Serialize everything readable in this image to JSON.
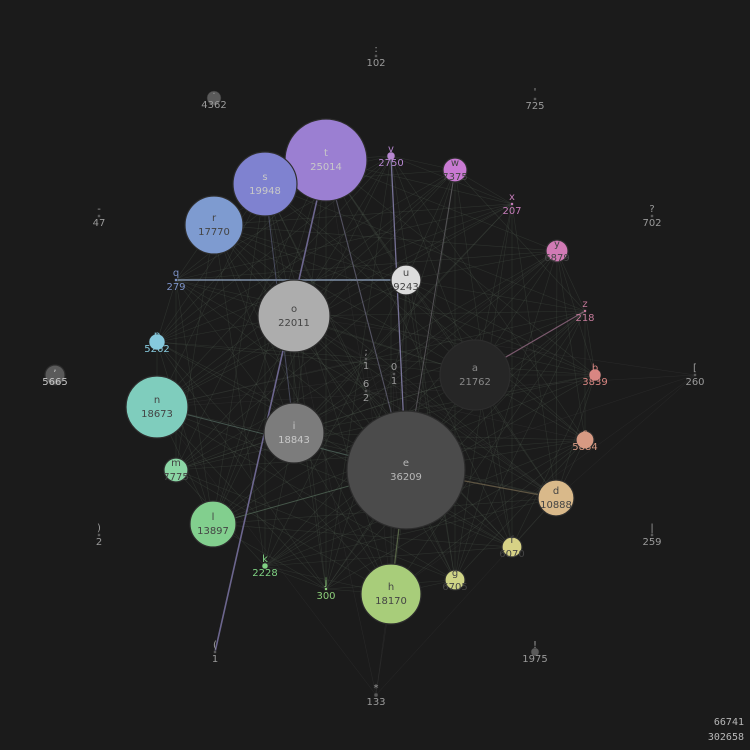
{
  "stats": {
    "top": "66741",
    "bottom": "302658"
  },
  "nodes": [
    {
      "id": "t",
      "label": "t",
      "count": "25014",
      "color": "#9b7fd2"
    },
    {
      "id": "s",
      "label": "s",
      "count": "19948",
      "color": "#7f82d0"
    },
    {
      "id": "r",
      "label": "r",
      "count": "17770",
      "color": "#7e9bd0"
    },
    {
      "id": "o",
      "label": "o",
      "count": "22011",
      "color": "#adadad"
    },
    {
      "id": "u",
      "label": "u",
      "count": "9243",
      "color": "#dcdcdc"
    },
    {
      "id": "a",
      "label": "a",
      "count": "21762",
      "color": "#262626"
    },
    {
      "id": "e",
      "label": "e",
      "count": "36209",
      "color": "#4b4b4b"
    },
    {
      "id": "i",
      "label": "i",
      "count": "18843",
      "color": "#7c7c7c"
    },
    {
      "id": "n",
      "label": "n",
      "count": "18673",
      "color": "#7fcdbd"
    },
    {
      "id": "m",
      "label": "m",
      "count": "7775",
      "color": "#8bd6a5"
    },
    {
      "id": "l",
      "label": "l",
      "count": "13897",
      "color": "#82cf8e"
    },
    {
      "id": "h",
      "label": "h",
      "count": "18170",
      "color": "#a8cd7a"
    },
    {
      "id": "d",
      "label": "d",
      "count": "10888",
      "color": "#d9b98a"
    },
    {
      "id": "w",
      "label": "w",
      "count": "7375",
      "color": "#c97ad3"
    },
    {
      "id": "y",
      "label": "y",
      "count": "6879",
      "color": "#d17ab4"
    },
    {
      "id": "p",
      "label": "p",
      "count": "5262",
      "color": "#86c9dd"
    },
    {
      "id": "c",
      "label": "c",
      "count": "5884",
      "color": "#d79a83"
    },
    {
      "id": "f",
      "label": "f",
      "count": "6070",
      "color": "#d7d286"
    },
    {
      "id": "g",
      "label": "g",
      "count": "6705",
      "color": "#cfd486"
    },
    {
      "id": "b",
      "label": "b",
      "count": "3839",
      "color": "#d98682"
    },
    {
      "id": "v",
      "label": "v",
      "count": "2750",
      "color": "#b787d1"
    },
    {
      "id": "k",
      "label": "k",
      "count": "2228",
      "color": "#7fd283"
    },
    {
      "id": "x",
      "label": "x",
      "count": "207",
      "color": "#c47ab8"
    },
    {
      "id": "z",
      "label": "z",
      "count": "218",
      "color": "#c47a9a"
    },
    {
      "id": "q",
      "label": "q",
      "count": "279",
      "color": "#7d93c8"
    },
    {
      "id": "j",
      "label": "j",
      "count": "300",
      "color": "#8ccf7a"
    },
    {
      "id": "dot",
      "label": ".",
      "count": "4362",
      "color": "#5a5a5a"
    },
    {
      "id": "comma",
      "label": ",",
      "count": "5665",
      "color": "#5a5a5a"
    },
    {
      "id": "colon",
      "label": ":",
      "count": "102",
      "color": "#5a5a5a"
    },
    {
      "id": "quote",
      "label": "'",
      "count": "725",
      "color": "#5a5a5a"
    },
    {
      "id": "dash",
      "label": "-",
      "count": "47",
      "color": "#5a5a5a"
    },
    {
      "id": "qmark",
      "label": "?",
      "count": "702",
      "color": "#5a5a5a"
    },
    {
      "id": "semi",
      "label": ";",
      "count": "1",
      "color": "#5a5a5a"
    },
    {
      "id": "zero",
      "label": "0",
      "count": "1",
      "color": "#5a5a5a"
    },
    {
      "id": "six",
      "label": "6",
      "count": "2",
      "color": "#5a5a5a"
    },
    {
      "id": "lbracket",
      "label": "[",
      "count": "260",
      "color": "#5a5a5a"
    },
    {
      "id": "rparen",
      "label": ")",
      "count": "2",
      "color": "#5a5a5a"
    },
    {
      "id": "pipe",
      "label": "|",
      "count": "259",
      "color": "#5a5a5a"
    },
    {
      "id": "lparen",
      "label": "(",
      "count": "1",
      "color": "#5a5a5a"
    },
    {
      "id": "bang",
      "label": "!",
      "count": "1975",
      "color": "#5a5a5a"
    },
    {
      "id": "star",
      "label": "*",
      "count": "133",
      "color": "#5a5a5a"
    }
  ]
}
